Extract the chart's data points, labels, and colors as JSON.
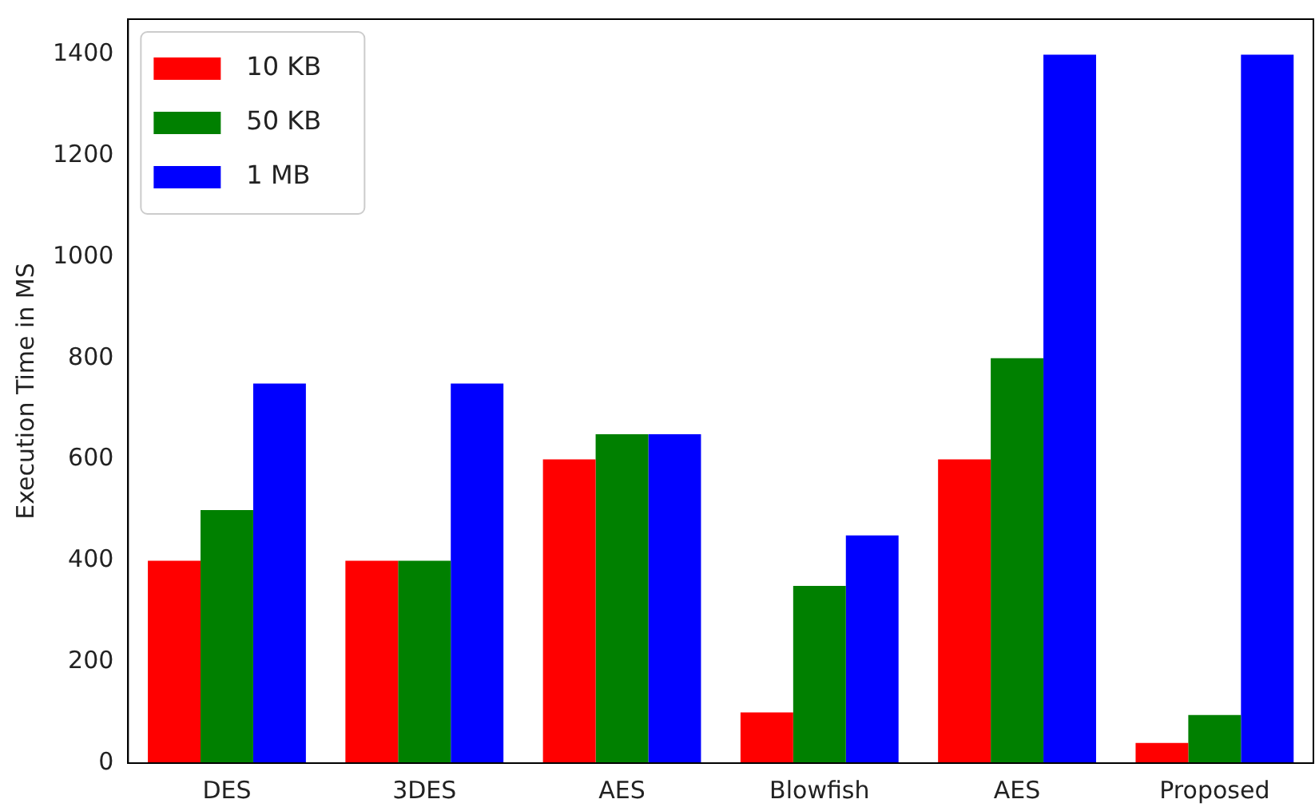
{
  "chart_data": {
    "type": "bar",
    "ylabel": "Execution Time in MS",
    "categories": [
      "DES",
      "3DES",
      "AES",
      "Blowfish",
      "AES",
      "Proposed"
    ],
    "series": [
      {
        "name": "10 KB",
        "color": "#ff0000",
        "values": [
          400,
          400,
          600,
          100,
          600,
          40
        ]
      },
      {
        "name": "50 KB",
        "color": "#008000",
        "values": [
          500,
          400,
          650,
          350,
          800,
          95
        ]
      },
      {
        "name": "1 MB",
        "color": "#0000ff",
        "values": [
          750,
          750,
          650,
          450,
          1400,
          1400
        ]
      }
    ],
    "ylim": [
      0,
      1470
    ],
    "yticks": [
      0,
      200,
      400,
      600,
      800,
      1000,
      1200,
      1400
    ],
    "grid": false,
    "legend": "top left"
  }
}
